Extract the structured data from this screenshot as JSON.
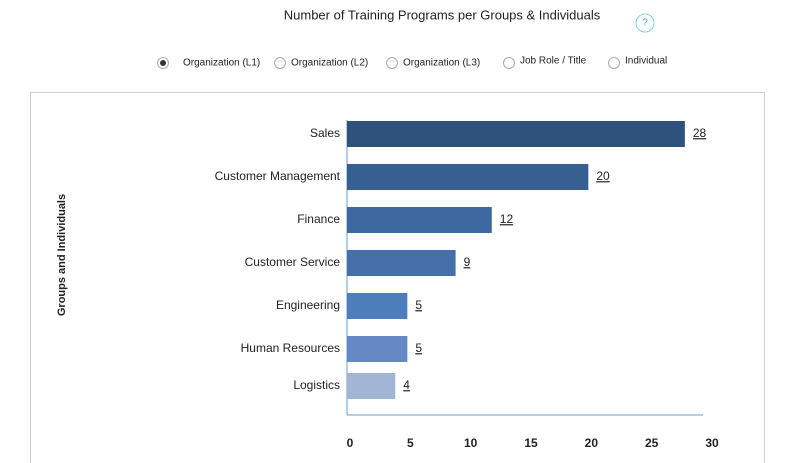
{
  "chart_data": {
    "type": "bar",
    "orientation": "horizontal",
    "title": "Number of Training Programs per Groups & Individuals",
    "ylabel": "Groups and Individuals",
    "categories": [
      "Sales",
      "Customer Management",
      "Finance",
      "Customer Service",
      "Engineering",
      "Human Resources",
      "Logistics"
    ],
    "values": [
      28,
      20,
      12,
      9,
      5,
      5,
      4
    ],
    "colors": [
      "#2f527d",
      "#375f8f",
      "#3e69a0",
      "#4570a9",
      "#4e7dbb",
      "#6489c4",
      "#a3b5d5"
    ],
    "xlim": [
      0,
      30
    ],
    "xticks": [
      0,
      5,
      10,
      15,
      20,
      25,
      30
    ],
    "grid": false
  },
  "help_icon": "?",
  "radio_options": [
    "Organization (L1)",
    "Organization (L2)",
    "Organization (L3)",
    "Job Role / Title",
    "Individual"
  ],
  "selected_option": 0
}
